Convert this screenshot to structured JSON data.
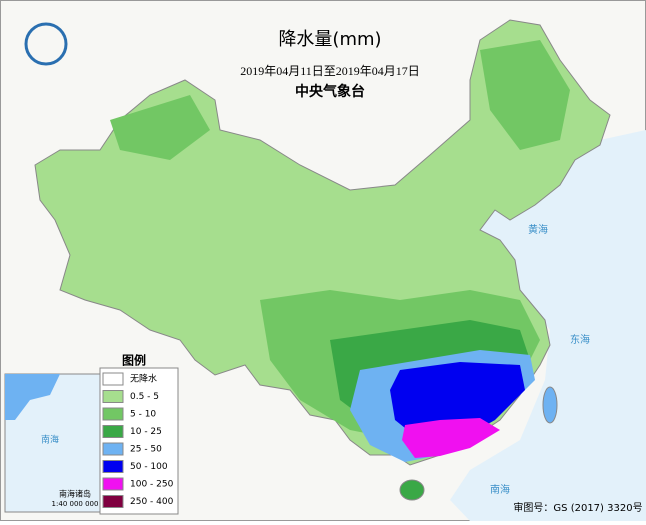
{
  "header": {
    "title": "降水量(mm)",
    "period": "2019年04月11日至2019年04月17日",
    "issuer": "中央气象台"
  },
  "legend": {
    "title": "图例",
    "items": [
      {
        "label": "无降水",
        "color": "#ffffff"
      },
      {
        "label": "0.5 - 5",
        "color": "#a6de8e"
      },
      {
        "label": "5 - 10",
        "color": "#72c764"
      },
      {
        "label": "10 - 25",
        "color": "#3aa846"
      },
      {
        "label": "25 - 50",
        "color": "#6eb2f2"
      },
      {
        "label": "50 - 100",
        "color": "#0000f0"
      },
      {
        "label": "100 - 250",
        "color": "#f010f0"
      },
      {
        "label": "250 - 400",
        "color": "#800040"
      }
    ]
  },
  "inset": {
    "title": "南海诸岛",
    "scale": "1:40 000 000"
  },
  "map_labels": {
    "seas": [
      "黄海",
      "东海",
      "南海",
      "南海"
    ]
  },
  "footer": "审图号：GS (2017) 3320号"
}
